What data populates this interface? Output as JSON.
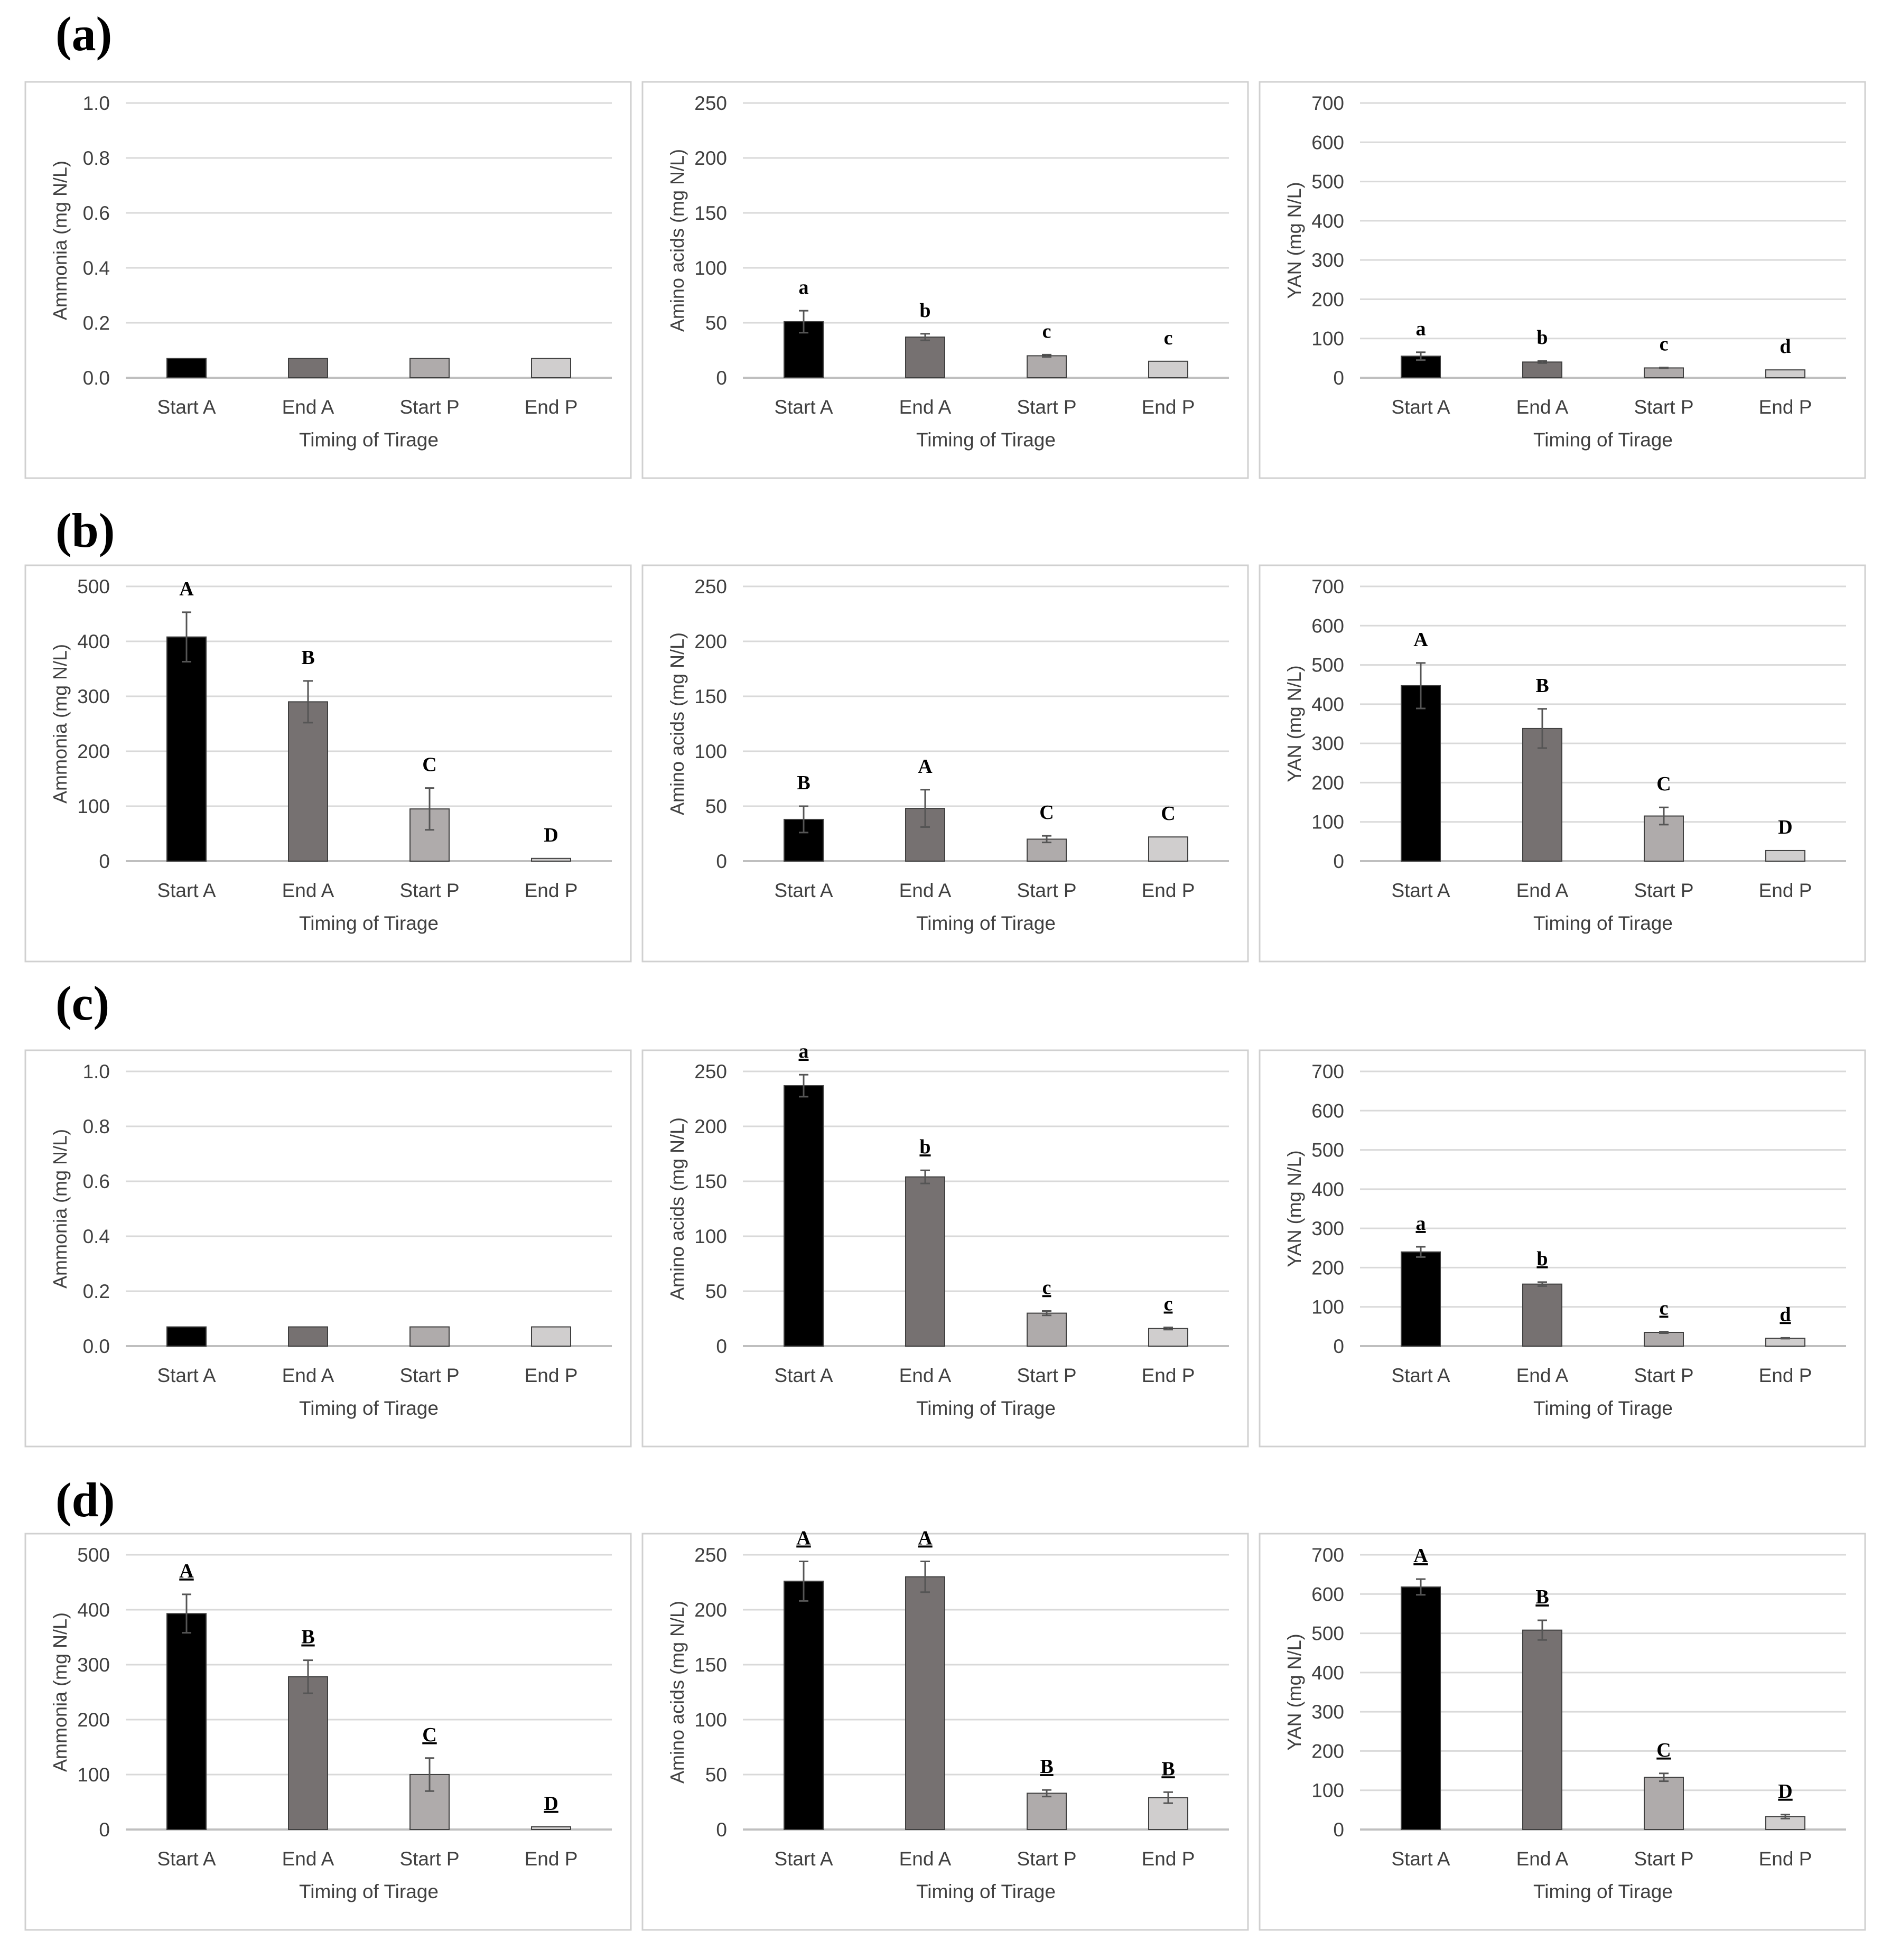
{
  "panels": [
    {
      "label": "(a)",
      "charts": [
        {
          "type": "bar",
          "ylabel": "Ammonia (mg N/L)",
          "xlabel": "Timing of Tirage",
          "categories": [
            "Start A",
            "End A",
            "Start P",
            "End P"
          ],
          "ylim": [
            0,
            1.0
          ],
          "yticks": [
            0.0,
            0.2,
            0.4,
            0.6,
            0.8,
            1.0
          ],
          "ytick_decimals": 1,
          "values": [
            0.07,
            0.07,
            0.07,
            0.07
          ],
          "errors": [
            0,
            0,
            0,
            0
          ],
          "letters": [
            "",
            "",
            "",
            ""
          ],
          "letters_underlined": false
        },
        {
          "type": "bar",
          "ylabel": "Amino acids (mg N/L)",
          "xlabel": "Timing of Tirage",
          "categories": [
            "Start A",
            "End A",
            "Start P",
            "End P"
          ],
          "ylim": [
            0,
            250
          ],
          "yticks": [
            0,
            50,
            100,
            150,
            200,
            250
          ],
          "ytick_decimals": 0,
          "values": [
            51,
            37,
            20,
            15
          ],
          "errors": [
            10,
            3,
            1,
            0
          ],
          "letters": [
            "a",
            "b",
            "c",
            "c"
          ],
          "letters_underlined": false
        },
        {
          "type": "bar",
          "ylabel": "YAN (mg N/L)",
          "xlabel": "Timing of Tirage",
          "categories": [
            "Start A",
            "End A",
            "Start P",
            "End P"
          ],
          "ylim": [
            0,
            700
          ],
          "yticks": [
            0,
            100,
            200,
            300,
            400,
            500,
            600,
            700
          ],
          "ytick_decimals": 0,
          "values": [
            55,
            40,
            25,
            20
          ],
          "errors": [
            10,
            3,
            1,
            0
          ],
          "letters": [
            "a",
            "b",
            "c",
            "d"
          ],
          "letters_underlined": false
        }
      ]
    },
    {
      "label": "(b)",
      "charts": [
        {
          "type": "bar",
          "ylabel": "Ammonia (mg N/L)",
          "xlabel": "Timing of Tirage",
          "categories": [
            "Start A",
            "End A",
            "Start P",
            "End P"
          ],
          "ylim": [
            0,
            500
          ],
          "yticks": [
            0,
            100,
            200,
            300,
            400,
            500
          ],
          "ytick_decimals": 0,
          "values": [
            408,
            290,
            95,
            5
          ],
          "errors": [
            45,
            38,
            38,
            0
          ],
          "letters": [
            "A",
            "B",
            "C",
            "D"
          ],
          "letters_underlined": false
        },
        {
          "type": "bar",
          "ylabel": "Amino acids (mg N/L)",
          "xlabel": "Timing of Tirage",
          "categories": [
            "Start A",
            "End A",
            "Start P",
            "End P"
          ],
          "ylim": [
            0,
            250
          ],
          "yticks": [
            0,
            50,
            100,
            150,
            200,
            250
          ],
          "ytick_decimals": 0,
          "values": [
            38,
            48,
            20,
            22
          ],
          "errors": [
            12,
            17,
            3,
            0
          ],
          "letters": [
            "B",
            "A",
            "C",
            "C"
          ],
          "letters_underlined": false
        },
        {
          "type": "bar",
          "ylabel": "YAN (mg N/L)",
          "xlabel": "Timing of Tirage",
          "categories": [
            "Start A",
            "End A",
            "Start P",
            "End P"
          ],
          "ylim": [
            0,
            700
          ],
          "yticks": [
            0,
            100,
            200,
            300,
            400,
            500,
            600,
            700
          ],
          "ytick_decimals": 0,
          "values": [
            447,
            338,
            115,
            27
          ],
          "errors": [
            58,
            50,
            22,
            0
          ],
          "letters": [
            "A",
            "B",
            "C",
            "D"
          ],
          "letters_underlined": false
        }
      ]
    },
    {
      "label": "(c)",
      "charts": [
        {
          "type": "bar",
          "ylabel": "Ammonia (mg N/L)",
          "xlabel": "Timing of Tirage",
          "categories": [
            "Start A",
            "End A",
            "Start P",
            "End P"
          ],
          "ylim": [
            0,
            1.0
          ],
          "yticks": [
            0.0,
            0.2,
            0.4,
            0.6,
            0.8,
            1.0
          ],
          "ytick_decimals": 1,
          "values": [
            0.07,
            0.07,
            0.07,
            0.07
          ],
          "errors": [
            0,
            0,
            0,
            0
          ],
          "letters": [
            "",
            "",
            "",
            ""
          ],
          "letters_underlined": false
        },
        {
          "type": "bar",
          "ylabel": "Amino acids (mg N/L)",
          "xlabel": "Timing of Tirage",
          "categories": [
            "Start A",
            "End A",
            "Start P",
            "End P"
          ],
          "ylim": [
            0,
            250
          ],
          "yticks": [
            0,
            50,
            100,
            150,
            200,
            250
          ],
          "ytick_decimals": 0,
          "values": [
            237,
            154,
            30,
            16
          ],
          "errors": [
            10,
            6,
            2,
            1
          ],
          "letters": [
            "a",
            "b",
            "c",
            "c"
          ],
          "letters_underlined": true
        },
        {
          "type": "bar",
          "ylabel": "YAN (mg N/L)",
          "xlabel": "Timing of Tirage",
          "categories": [
            "Start A",
            "End A",
            "Start P",
            "End P"
          ],
          "ylim": [
            0,
            700
          ],
          "yticks": [
            0,
            100,
            200,
            300,
            400,
            500,
            600,
            700
          ],
          "ytick_decimals": 0,
          "values": [
            240,
            158,
            35,
            20
          ],
          "errors": [
            13,
            5,
            2,
            1
          ],
          "letters": [
            "a",
            "b",
            "c",
            "d"
          ],
          "letters_underlined": true
        }
      ]
    },
    {
      "label": "(d)",
      "charts": [
        {
          "type": "bar",
          "ylabel": "Ammonia (mg N/L)",
          "xlabel": "Timing of Tirage",
          "categories": [
            "Start A",
            "End A",
            "Start P",
            "End P"
          ],
          "ylim": [
            0,
            500
          ],
          "yticks": [
            0,
            100,
            200,
            300,
            400,
            500
          ],
          "ytick_decimals": 0,
          "values": [
            393,
            278,
            100,
            5
          ],
          "errors": [
            35,
            30,
            30,
            0
          ],
          "letters": [
            "A",
            "B",
            "C",
            "D"
          ],
          "letters_underlined": true
        },
        {
          "type": "bar",
          "ylabel": "Amino acids (mg N/L)",
          "xlabel": "Timing of Tirage",
          "categories": [
            "Start A",
            "End A",
            "Start P",
            "End P"
          ],
          "ylim": [
            0,
            250
          ],
          "yticks": [
            0,
            50,
            100,
            150,
            200,
            250
          ],
          "ytick_decimals": 0,
          "values": [
            226,
            230,
            33,
            29
          ],
          "errors": [
            18,
            14,
            3,
            5
          ],
          "letters": [
            "A",
            "A",
            "B",
            "B"
          ],
          "letters_underlined": true
        },
        {
          "type": "bar",
          "ylabel": "YAN (mg N/L)",
          "xlabel": "Timing of Tirage",
          "categories": [
            "Start A",
            "End A",
            "Start P",
            "End P"
          ],
          "ylim": [
            0,
            700
          ],
          "yticks": [
            0,
            100,
            200,
            300,
            400,
            500,
            600,
            700
          ],
          "ytick_decimals": 0,
          "values": [
            618,
            508,
            133,
            33
          ],
          "errors": [
            20,
            25,
            10,
            5
          ],
          "letters": [
            "A",
            "B",
            "C",
            "D"
          ],
          "letters_underlined": true
        }
      ]
    }
  ],
  "colors": {
    "bars": [
      "#000000",
      "#767171",
      "#afabab",
      "#d0cece"
    ],
    "bar_edge": "#404040",
    "grid": "#d9d9d9",
    "panel_border": "#d0d0d0",
    "text": "#404040",
    "error_bar": "#555555"
  }
}
